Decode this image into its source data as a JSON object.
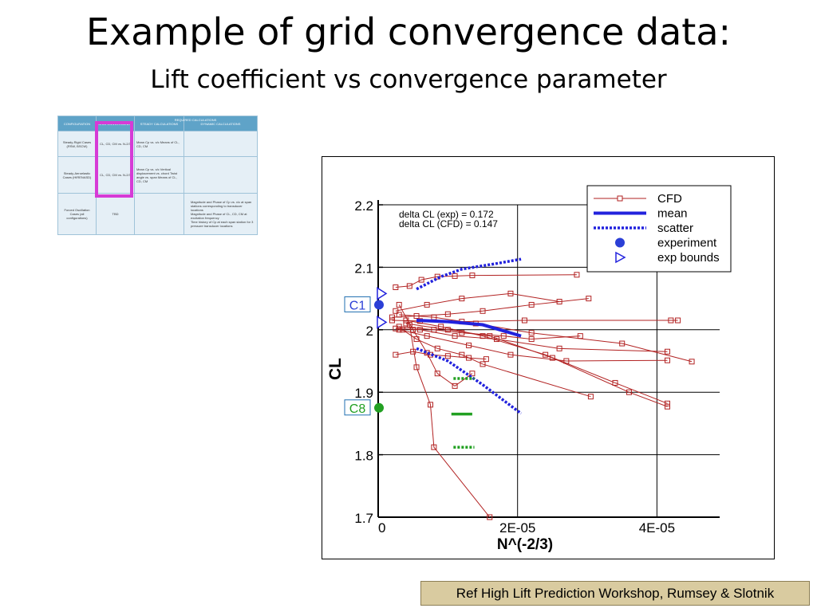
{
  "slide": {
    "title": "Example of grid convergence data:",
    "subtitle": "Lift coefficient vs convergence parameter",
    "reference": "Ref High Lift Prediction Workshop, Rumsey & Slotnik"
  },
  "thumbnail_table": {
    "header_required": "REQUIRED CALCULATIONS",
    "header_grid": "GRID CONVERGENCE",
    "header_config": "CONFIGURATION",
    "header_steady": "STEADY CALCULATIONS",
    "header_dynamic": "DYNAMIC CALCULATIONS",
    "rows": [
      {
        "config": "Steady-Rigid Cases (RSW, BSCW)",
        "grid": "CL, CD, CM vs. N-2/3",
        "steady": "Mean Cp vs. x/c Means of CL, CD, CM",
        "dynamic": ""
      },
      {
        "config": "Steady-Aeroelastic Cases (HIRENASD)",
        "grid": "CL, CD, CM vs. N-2/3",
        "steady": "Mean Cp vs. x/c Vertical displacement vs. chord Twist angle vs. span Means of CL, CD, CM",
        "dynamic": ""
      },
      {
        "config": "Forced Oscillation Cases (all configurations)",
        "grid": "TBD",
        "steady": "",
        "dynamic_items": [
          "Magnitude and Phase of Cp vs. x/c at span stations corresponding to transducer locations",
          "Magnitude and Phase of CL, CD, CM at excitation frequency",
          "Time history of Cp at each span station for 3 pressure transducer locations"
        ]
      }
    ]
  },
  "chart_data": {
    "type": "line",
    "xlabel": "N^(-2/3)",
    "ylabel": "CL",
    "xlim": [
      0,
      4.9e-05
    ],
    "ylim": [
      1.7,
      2.2
    ],
    "x_ticks": [
      {
        "value": 0,
        "label": "0"
      },
      {
        "value": 2e-05,
        "label": "2E-05"
      },
      {
        "value": 4e-05,
        "label": "4E-05"
      }
    ],
    "y_ticks": [
      {
        "value": 1.7,
        "label": "1.7"
      },
      {
        "value": 1.8,
        "label": "1.8"
      },
      {
        "value": 1.9,
        "label": "1.9"
      },
      {
        "value": 2.0,
        "label": "2"
      },
      {
        "value": 2.1,
        "label": "2.1"
      },
      {
        "value": 2.2,
        "label": "2.2"
      }
    ],
    "grid": true,
    "annotations": [
      "delta CL (exp) = 0.172",
      "delta CL (CFD) = 0.147"
    ],
    "legend": {
      "placement": "top-right",
      "entries": [
        "CFD",
        "mean",
        "scatter",
        "experiment",
        "exp bounds"
      ]
    },
    "colors": {
      "cfd": "#b22222",
      "mean": "#2222dd",
      "experiment_c1": "#2b3fd6",
      "experiment_c8": "#22a022",
      "c8_marks": "#22a022"
    },
    "series": [
      {
        "name": "CFD",
        "lines": [
          [
            [
              2.5e-06,
              2.068
            ],
            [
              4.5e-06,
              2.07
            ],
            [
              6.2e-06,
              2.08
            ],
            [
              8.5e-06,
              2.085
            ],
            [
              1.1e-05,
              2.086
            ],
            [
              1.35e-05,
              2.087
            ],
            [
              2.85e-05,
              2.088
            ]
          ],
          [
            [
              2.5e-06,
              2.03
            ],
            [
              7e-06,
              2.04
            ],
            [
              1.2e-05,
              2.05
            ],
            [
              1.9e-05,
              2.058
            ],
            [
              2.6e-05,
              2.045
            ]
          ],
          [
            [
              2e-06,
              2.02
            ],
            [
              5.5e-06,
              2.022
            ],
            [
              1e-05,
              2.025
            ],
            [
              1.5e-05,
              2.03
            ],
            [
              2.2e-05,
              2.04
            ],
            [
              3.02e-05,
              2.05
            ]
          ],
          [
            [
              2e-06,
              2.015
            ],
            [
              6e-06,
              2.014
            ],
            [
              1.2e-05,
              2.013
            ],
            [
              2.1e-05,
              2.015
            ],
            [
              4.2e-05,
              2.015
            ],
            [
              4.3e-05,
              2.015
            ]
          ],
          [
            [
              3e-06,
              2.024
            ],
            [
              8e-06,
              2.02
            ],
            [
              1.4e-05,
              2.01
            ],
            [
              2.2e-05,
              1.995
            ],
            [
              3.5e-05,
              1.978
            ],
            [
              4.5e-05,
              1.949
            ]
          ],
          [
            [
              2.5e-06,
              2.002
            ],
            [
              6e-06,
              2.0
            ],
            [
              1.1e-05,
              1.99
            ],
            [
              1.7e-05,
              1.985
            ],
            [
              2.6e-05,
              1.97
            ],
            [
              4.15e-05,
              1.965
            ]
          ],
          [
            [
              3e-06,
              2.0
            ],
            [
              7e-06,
              1.99
            ],
            [
              1.3e-05,
              1.975
            ],
            [
              1.9e-05,
              1.96
            ],
            [
              2.7e-05,
              1.95
            ],
            [
              4.15e-05,
              1.951
            ]
          ],
          [
            [
              4e-06,
              2.01
            ],
            [
              1e-05,
              2.0
            ],
            [
              1.6e-05,
              1.99
            ],
            [
              2.5e-05,
              1.955
            ],
            [
              3.6e-05,
              1.9
            ],
            [
              4.15e-05,
              1.877
            ]
          ],
          [
            [
              4e-06,
              2.015
            ],
            [
              9e-06,
              2.005
            ],
            [
              1.5e-05,
              1.99
            ],
            [
              2.4e-05,
              1.96
            ],
            [
              3.4e-05,
              1.915
            ],
            [
              4.15e-05,
              1.882
            ]
          ],
          [
            [
              2.5e-06,
              1.96
            ],
            [
              5e-06,
              1.965
            ],
            [
              7.5e-06,
              1.96
            ],
            [
              1e-05,
              1.958
            ],
            [
              1.3e-05,
              1.955
            ],
            [
              1.55e-05,
              1.953
            ]
          ],
          [
            [
              3e-06,
              2.04
            ],
            [
              5e-06,
              2.0
            ],
            [
              7e-06,
              1.963
            ],
            [
              8.5e-06,
              1.93
            ],
            [
              1.1e-05,
              1.91
            ],
            [
              1.35e-05,
              1.93
            ]
          ],
          [
            [
              3.5e-06,
              2.0
            ],
            [
              5.5e-06,
              1.985
            ],
            [
              8.5e-06,
              1.97
            ],
            [
              1.2e-05,
              1.96
            ],
            [
              1.5e-05,
              1.945
            ],
            [
              3.05e-05,
              1.893
            ]
          ],
          [
            [
              4.5e-06,
              2.008
            ],
            [
              5.5e-06,
              1.94
            ],
            [
              7.5e-06,
              1.88
            ],
            [
              8e-06,
              1.812
            ],
            [
              1.6e-05,
              1.7
            ]
          ],
          [
            [
              3e-06,
              2.005
            ],
            [
              8e-06,
              2.0
            ],
            [
              1.2e-05,
              1.995
            ],
            [
              1.8e-05,
              1.99
            ],
            [
              2.2e-05,
              1.985
            ],
            [
              2.9e-05,
              1.99
            ]
          ]
        ]
      },
      {
        "name": "mean",
        "points": [
          [
            5.5e-06,
            2.015
          ],
          [
            1e-05,
            2.013
          ],
          [
            1.5e-05,
            2.008
          ],
          [
            2.05e-05,
            1.99
          ]
        ]
      },
      {
        "name": "scatter",
        "lines": [
          [
            [
              5.5e-06,
              2.065
            ],
            [
              9e-06,
              2.085
            ],
            [
              1.2e-05,
              2.097
            ],
            [
              1.7e-05,
              2.106
            ],
            [
              2.05e-05,
              2.113
            ]
          ],
          [
            [
              5.5e-06,
              1.97
            ],
            [
              1e-05,
              1.95
            ],
            [
              1.5e-05,
              1.912
            ],
            [
              2.05e-05,
              1.866
            ]
          ]
        ]
      },
      {
        "name": "experiment",
        "points": [
          {
            "label": "C1",
            "y": 2.04
          },
          {
            "label": "C8",
            "y": 1.875
          }
        ]
      },
      {
        "name": "exp bounds",
        "points": [
          [
            0.0,
            2.058
          ],
          [
            0.0,
            2.012
          ]
        ]
      },
      {
        "name": "C8 marks",
        "segments": [
          {
            "y": 1.922,
            "x0": 1.08e-05,
            "x1": 1.38e-05,
            "style": "dotted"
          },
          {
            "y": 1.865,
            "x0": 1.05e-05,
            "x1": 1.35e-05,
            "style": "solid"
          },
          {
            "y": 1.812,
            "x0": 1.08e-05,
            "x1": 1.38e-05,
            "style": "dotted"
          }
        ]
      }
    ]
  }
}
